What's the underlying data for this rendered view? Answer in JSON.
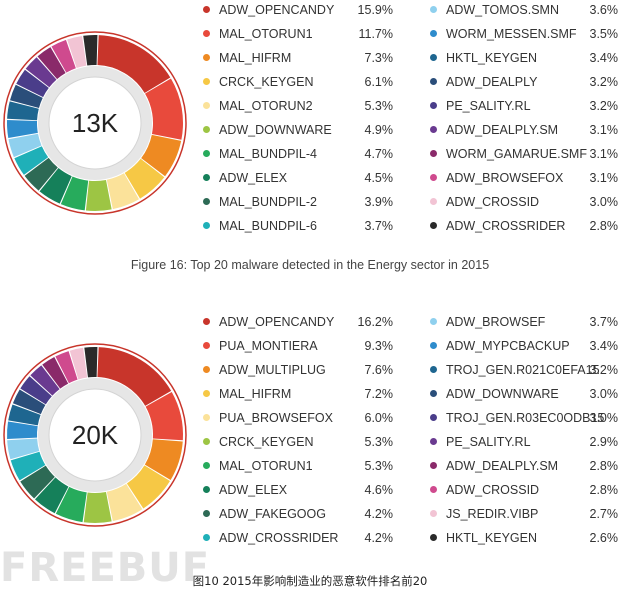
{
  "chart_data": [
    {
      "type": "pie",
      "center_label": "13K",
      "caption": "Figure 16: Top 20 malware detected in the Energy sector in 2015",
      "slices": [
        {
          "label": "ADW_OPENCANDY",
          "display": "15.9%",
          "value": 15.9,
          "color": "#c8352b"
        },
        {
          "label": "MAL_OTORUN1",
          "display": "11.7%",
          "value": 11.7,
          "color": "#e84a3c"
        },
        {
          "label": "MAL_HIFRM",
          "display": "7.3%",
          "value": 7.3,
          "color": "#ee8a22"
        },
        {
          "label": "CRCK_KEYGEN",
          "display": "6.1%",
          "value": 6.1,
          "color": "#f6c845"
        },
        {
          "label": "MAL_OTORUN2",
          "display": "5.3%",
          "value": 5.3,
          "color": "#fbe29a"
        },
        {
          "label": "ADW_DOWNWARE",
          "display": "4.9%",
          "value": 4.9,
          "color": "#9dc544"
        },
        {
          "label": "MAL_BUNDPIL-4",
          "display": "4.7%",
          "value": 4.7,
          "color": "#27ab5c"
        },
        {
          "label": "ADW_ELEX",
          "display": "4.5%",
          "value": 4.5,
          "color": "#15805a"
        },
        {
          "label": "MAL_BUNDPIL-2",
          "display": "3.9%",
          "value": 3.9,
          "color": "#2d6a55"
        },
        {
          "label": "MAL_BUNDPIL-6",
          "display": "3.7%",
          "value": 3.7,
          "color": "#1fb0b8"
        },
        {
          "label": "ADW_TOMOS.SMN",
          "display": "3.6%",
          "value": 3.6,
          "color": "#8fd0ee"
        },
        {
          "label": "WORM_MESSEN.SMF",
          "display": "3.5%",
          "value": 3.5,
          "color": "#2e8ccc"
        },
        {
          "label": "HKTL_KEYGEN",
          "display": "3.4%",
          "value": 3.4,
          "color": "#1e6690"
        },
        {
          "label": "ADW_DEALPLY",
          "display": "3.2%",
          "value": 3.2,
          "color": "#2a4e7a"
        },
        {
          "label": "PE_SALITY.RL",
          "display": "3.2%",
          "value": 3.2,
          "color": "#4a3d8a"
        },
        {
          "label": "ADW_DEALPLY.SM",
          "display": "3.1%",
          "value": 3.1,
          "color": "#6a3a90"
        },
        {
          "label": "WORM_GAMARUE.SMF",
          "display": "3.1%",
          "value": 3.1,
          "color": "#8a2a6a"
        },
        {
          "label": "ADW_BROWSEFOX",
          "display": "3.1%",
          "value": 3.1,
          "color": "#cf4a8e"
        },
        {
          "label": "ADW_CROSSID",
          "display": "3.0%",
          "value": 3.0,
          "color": "#f2c4d4"
        },
        {
          "label": "ADW_CROSSRIDER",
          "display": "2.8%",
          "value": 2.8,
          "color": "#2a2a2a"
        }
      ]
    },
    {
      "type": "pie",
      "center_label": "20K",
      "caption": "图10 2015年影响制造业的恶意软件排名前20",
      "slices": [
        {
          "label": "ADW_OPENCANDY",
          "display": "16.2%",
          "value": 16.2,
          "color": "#c8352b"
        },
        {
          "label": "PUA_MONTIERA",
          "display": "9.3%",
          "value": 9.3,
          "color": "#e84a3c"
        },
        {
          "label": "ADW_MULTIPLUG",
          "display": "7.6%",
          "value": 7.6,
          "color": "#ee8a22"
        },
        {
          "label": "MAL_HIFRM",
          "display": "7.2%",
          "value": 7.2,
          "color": "#f6c845"
        },
        {
          "label": "PUA_BROWSEFOX",
          "display": "6.0%",
          "value": 6.0,
          "color": "#fbe29a"
        },
        {
          "label": "CRCK_KEYGEN",
          "display": "5.3%",
          "value": 5.3,
          "color": "#9dc544"
        },
        {
          "label": "MAL_OTORUN1",
          "display": "5.3%",
          "value": 5.3,
          "color": "#27ab5c"
        },
        {
          "label": "ADW_ELEX",
          "display": "4.6%",
          "value": 4.6,
          "color": "#15805a"
        },
        {
          "label": "ADW_FAKEGOOG",
          "display": "4.2%",
          "value": 4.2,
          "color": "#2d6a55"
        },
        {
          "label": "ADW_CROSSRIDER",
          "display": "4.2%",
          "value": 4.2,
          "color": "#1fb0b8"
        },
        {
          "label": "ADW_BROWSEF",
          "display": "3.7%",
          "value": 3.7,
          "color": "#8fd0ee"
        },
        {
          "label": "ADW_MYPCBACKUP",
          "display": "3.4%",
          "value": 3.4,
          "color": "#2e8ccc"
        },
        {
          "label": "TROJ_GEN.R021C0EFA15",
          "display": "3.2%",
          "value": 3.2,
          "color": "#1e6690"
        },
        {
          "label": "ADW_DOWNWARE",
          "display": "3.0%",
          "value": 3.0,
          "color": "#2a4e7a"
        },
        {
          "label": "TROJ_GEN.R03EC0ODB15",
          "display": "3.0%",
          "value": 3.0,
          "color": "#4a3d8a"
        },
        {
          "label": "PE_SALITY.RL",
          "display": "2.9%",
          "value": 2.9,
          "color": "#6a3a90"
        },
        {
          "label": "ADW_DEALPLY.SM",
          "display": "2.8%",
          "value": 2.8,
          "color": "#8a2a6a"
        },
        {
          "label": "ADW_CROSSID",
          "display": "2.8%",
          "value": 2.8,
          "color": "#cf4a8e"
        },
        {
          "label": "JS_REDIR.VIBP",
          "display": "2.7%",
          "value": 2.7,
          "color": "#f2c4d4"
        },
        {
          "label": "HKTL_KEYGEN",
          "display": "2.6%",
          "value": 2.6,
          "color": "#2a2a2a"
        }
      ]
    }
  ],
  "watermark": "FREEBUF"
}
